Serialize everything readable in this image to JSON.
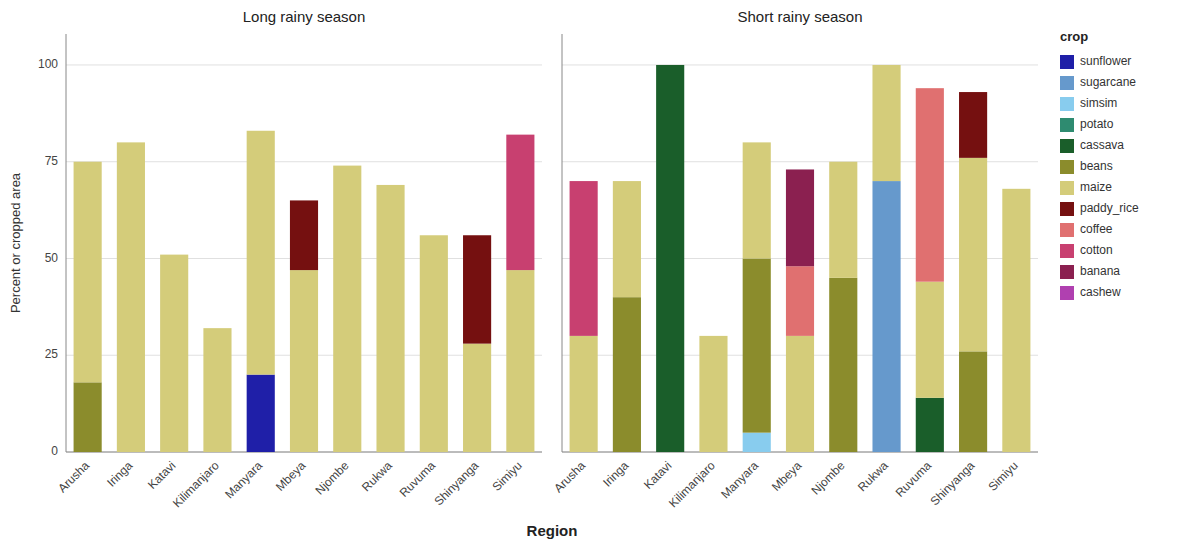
{
  "chart_data": [
    {
      "type": "bar",
      "stacked": true,
      "grid": true,
      "title": "Long rainy season",
      "y_label": "Percent or cropped area",
      "x_label": "Region",
      "categories": [
        "Arusha",
        "Iringa",
        "Katavi",
        "Kilimanjaro",
        "Manyara",
        "Mbeya",
        "Njombe",
        "Rukwa",
        "Ruvuma",
        "Shinyanga",
        "Simiyu"
      ],
      "ylim": [
        0,
        108
      ],
      "yticks": [
        0,
        25,
        50,
        75,
        100
      ],
      "series": [
        {
          "name": "sunflower",
          "color": "#1f1fa8",
          "values": [
            null,
            null,
            null,
            null,
            20,
            null,
            null,
            null,
            null,
            null,
            null
          ]
        },
        {
          "name": "beans",
          "color": "#8b8c2c",
          "values": [
            18,
            null,
            null,
            null,
            null,
            null,
            null,
            null,
            null,
            null,
            null
          ]
        },
        {
          "name": "maize",
          "color": "#d4cc7a",
          "values": [
            57,
            80,
            51,
            32,
            63,
            47,
            74,
            69,
            56,
            28,
            47
          ]
        },
        {
          "name": "paddy_rice",
          "color": "#751010",
          "values": [
            null,
            null,
            null,
            null,
            null,
            18,
            null,
            null,
            null,
            28,
            null
          ]
        },
        {
          "name": "cotton",
          "color": "#c84070",
          "values": [
            null,
            null,
            null,
            null,
            null,
            null,
            null,
            null,
            null,
            null,
            35
          ]
        }
      ]
    },
    {
      "type": "bar",
      "stacked": true,
      "grid": true,
      "tick_labels": "x",
      "title": "Short rainy season",
      "legend": "right",
      "legend_title": "crop",
      "categories": [
        "Arusha",
        "Iringa",
        "Katavi",
        "Kilimanjaro",
        "Manyara",
        "Mbeya",
        "Njombe",
        "Rukwa",
        "Ruvuma",
        "Shinyanga",
        "Simiyu"
      ],
      "ylim": [
        0,
        108
      ],
      "yticks": [
        0,
        25,
        50,
        75,
        100
      ],
      "series": [
        {
          "name": "sunflower",
          "color": "#1f1fa8",
          "values": [
            null,
            null,
            null,
            null,
            null,
            null,
            null,
            null,
            null,
            null,
            null
          ]
        },
        {
          "name": "sugarcane",
          "color": "#6699cc",
          "values": [
            null,
            null,
            null,
            null,
            null,
            null,
            null,
            70,
            null,
            null,
            null
          ]
        },
        {
          "name": "simsim",
          "color": "#88ccee",
          "values": [
            null,
            null,
            null,
            null,
            5,
            null,
            null,
            null,
            null,
            null,
            null
          ]
        },
        {
          "name": "potato",
          "color": "#2e8b70",
          "values": [
            null,
            null,
            null,
            null,
            null,
            null,
            0,
            null,
            null,
            null,
            null
          ]
        },
        {
          "name": "cassava",
          "color": "#1a5e2a",
          "values": [
            null,
            null,
            100,
            null,
            null,
            null,
            null,
            null,
            14,
            null,
            null
          ]
        },
        {
          "name": "beans",
          "color": "#8b8c2c",
          "values": [
            null,
            40,
            null,
            null,
            45,
            null,
            45,
            null,
            null,
            26,
            null
          ]
        },
        {
          "name": "maize",
          "color": "#d4cc7a",
          "values": [
            30,
            30,
            null,
            30,
            30,
            30,
            30,
            30,
            30,
            50,
            68
          ]
        },
        {
          "name": "paddy_rice",
          "color": "#751010",
          "values": [
            null,
            null,
            null,
            null,
            null,
            null,
            null,
            null,
            null,
            17,
            null
          ]
        },
        {
          "name": "coffee",
          "color": "#e07070",
          "values": [
            null,
            null,
            null,
            null,
            null,
            18,
            null,
            null,
            50,
            null,
            null
          ]
        },
        {
          "name": "cotton",
          "color": "#c84070",
          "values": [
            40,
            null,
            null,
            null,
            null,
            null,
            null,
            null,
            null,
            null,
            null
          ]
        },
        {
          "name": "banana",
          "color": "#8b2050",
          "values": [
            null,
            null,
            null,
            null,
            null,
            25,
            null,
            null,
            null,
            null,
            null
          ]
        },
        {
          "name": "cashew",
          "color": "#b040b0",
          "values": [
            null,
            null,
            null,
            null,
            null,
            null,
            null,
            null,
            null,
            null,
            null
          ]
        }
      ]
    }
  ]
}
